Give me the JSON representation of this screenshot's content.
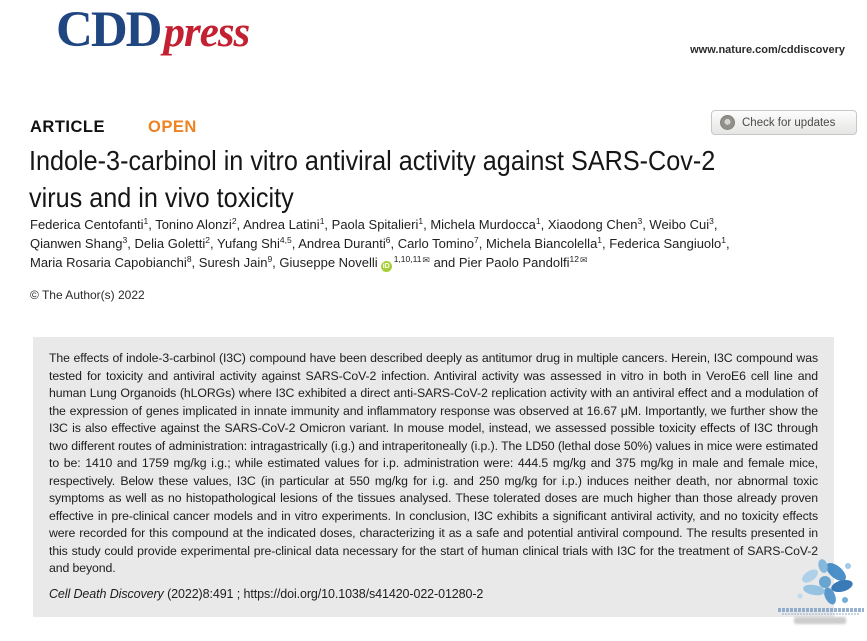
{
  "header": {
    "logo": {
      "cdd": "CDD",
      "press": "press"
    },
    "site_url": "www.nature.com/cddiscovery"
  },
  "article": {
    "kicker": "ARTICLE",
    "open_label": "OPEN",
    "check_updates_label": "Check for updates",
    "title_line1": "Indole-3-carbinol in vitro antiviral activity against SARS-Cov-2",
    "title_line2": "virus and in vivo toxicity",
    "copyright": "© The Author(s) 2022"
  },
  "authors": {
    "lines": [
      [
        {
          "t": "name",
          "v": "Federica Centofanti"
        },
        {
          "t": "sup",
          "v": "1"
        },
        {
          "t": "sep",
          "v": ", "
        },
        {
          "t": "name",
          "v": "Tonino Alonzi"
        },
        {
          "t": "sup",
          "v": "2"
        },
        {
          "t": "sep",
          "v": ", "
        },
        {
          "t": "name",
          "v": "Andrea Latini"
        },
        {
          "t": "sup",
          "v": "1"
        },
        {
          "t": "sep",
          "v": ", "
        },
        {
          "t": "name",
          "v": "Paola Spitalieri"
        },
        {
          "t": "sup",
          "v": "1"
        },
        {
          "t": "sep",
          "v": ", "
        },
        {
          "t": "name",
          "v": "Michela Murdocca"
        },
        {
          "t": "sup",
          "v": "1"
        },
        {
          "t": "sep",
          "v": ", "
        },
        {
          "t": "name",
          "v": "Xiaodong Chen"
        },
        {
          "t": "sup",
          "v": "3"
        },
        {
          "t": "sep",
          "v": ", "
        },
        {
          "t": "name",
          "v": "Weibo Cui"
        },
        {
          "t": "sup",
          "v": "3"
        },
        {
          "t": "sep",
          "v": ","
        }
      ],
      [
        {
          "t": "name",
          "v": "Qianwen Shang"
        },
        {
          "t": "sup",
          "v": "3"
        },
        {
          "t": "sep",
          "v": ", "
        },
        {
          "t": "name",
          "v": "Delia Goletti"
        },
        {
          "t": "sup",
          "v": "2"
        },
        {
          "t": "sep",
          "v": ", "
        },
        {
          "t": "name",
          "v": "Yufang Shi"
        },
        {
          "t": "sup",
          "v": "4,5"
        },
        {
          "t": "sep",
          "v": ", "
        },
        {
          "t": "name",
          "v": "Andrea Duranti"
        },
        {
          "t": "sup",
          "v": "6"
        },
        {
          "t": "sep",
          "v": ", "
        },
        {
          "t": "name",
          "v": "Carlo Tomino"
        },
        {
          "t": "sup",
          "v": "7"
        },
        {
          "t": "sep",
          "v": ", "
        },
        {
          "t": "name",
          "v": "Michela Biancolella"
        },
        {
          "t": "sup",
          "v": "1"
        },
        {
          "t": "sep",
          "v": ", "
        },
        {
          "t": "name",
          "v": "Federica Sangiuolo"
        },
        {
          "t": "sup",
          "v": "1"
        },
        {
          "t": "sep",
          "v": ","
        }
      ],
      [
        {
          "t": "name",
          "v": "Maria Rosaria Capobianchi"
        },
        {
          "t": "sup",
          "v": "8"
        },
        {
          "t": "sep",
          "v": ", "
        },
        {
          "t": "name",
          "v": "Suresh Jain"
        },
        {
          "t": "sup",
          "v": "9"
        },
        {
          "t": "sep",
          "v": ", "
        },
        {
          "t": "name",
          "v": "Giuseppe Novelli"
        },
        {
          "t": "orcid"
        },
        {
          "t": "sup",
          "v": "1,10,11"
        },
        {
          "t": "mail"
        },
        {
          "t": "sep",
          "v": " and "
        },
        {
          "t": "name",
          "v": "Pier Paolo Pandolfi"
        },
        {
          "t": "sup",
          "v": "12"
        },
        {
          "t": "mail"
        }
      ]
    ]
  },
  "icons": {
    "orcid_text": "iD",
    "mail_glyph": "✉",
    "crossmark": "crossmark-circle-icon",
    "watermark_logo": "blue-paint-splat-logo"
  },
  "abstract": {
    "text": "The effects of indole-3-carbinol (I3C) compound have been described deeply as antitumor drug in multiple cancers. Herein, I3C compound was tested for toxicity and antiviral activity against SARS-CoV-2 infection. Antiviral activity was assessed in vitro in both in VeroE6 cell line and human Lung Organoids (hLORGs) where I3C exhibited a direct anti-SARS-CoV-2 replication activity with an antiviral effect and a modulation of the expression of genes implicated in innate immunity and inflammatory response was observed at 16.67 μM. Importantly, we further show the I3C is also effective against the SARS-CoV-2 Omicron variant. In mouse model, instead, we assessed possible toxicity effects of I3C through two different routes of administration: intragastrically (i.g.) and intraperitoneally (i.p.). The LD50 (lethal dose 50%) values in mice were estimated to be: 1410 and 1759 mg/kg i.g.; while estimated values for i.p. administration were: 444.5 mg/kg and 375 mg/kg in male and female mice, respectively. Below these values, I3C (in particular at 550 mg/kg for i.g. and 250 mg/kg for i.p.) induces neither death, nor abnormal toxic symptoms as well as no histopathological lesions of the tissues analysed. These tolerated doses are much higher than those already proven effective in pre-clinical cancer models and in vitro experiments. In conclusion, I3C exhibits a significant antiviral activity, and no toxicity effects were recorded for this compound at the indicated doses, characterizing it as a safe and potential antiviral compound. The results presented in this study could provide experimental pre-clinical data necessary for the start of human clinical trials with I3C for the treatment of SARS-CoV-2 and beyond."
  },
  "citation": {
    "journal": "Cell Death Discovery",
    "middle": " (2022)8:491 ; ",
    "doi": "https://doi.org/10.1038/s41420-022-01280-2"
  },
  "colors": {
    "logo_blue": "#1f4680",
    "logo_red": "#c32032",
    "open_orange": "#ef8222",
    "abstract_box_gray": "#e9e9e9",
    "orcid_green": "#a6ce39"
  }
}
